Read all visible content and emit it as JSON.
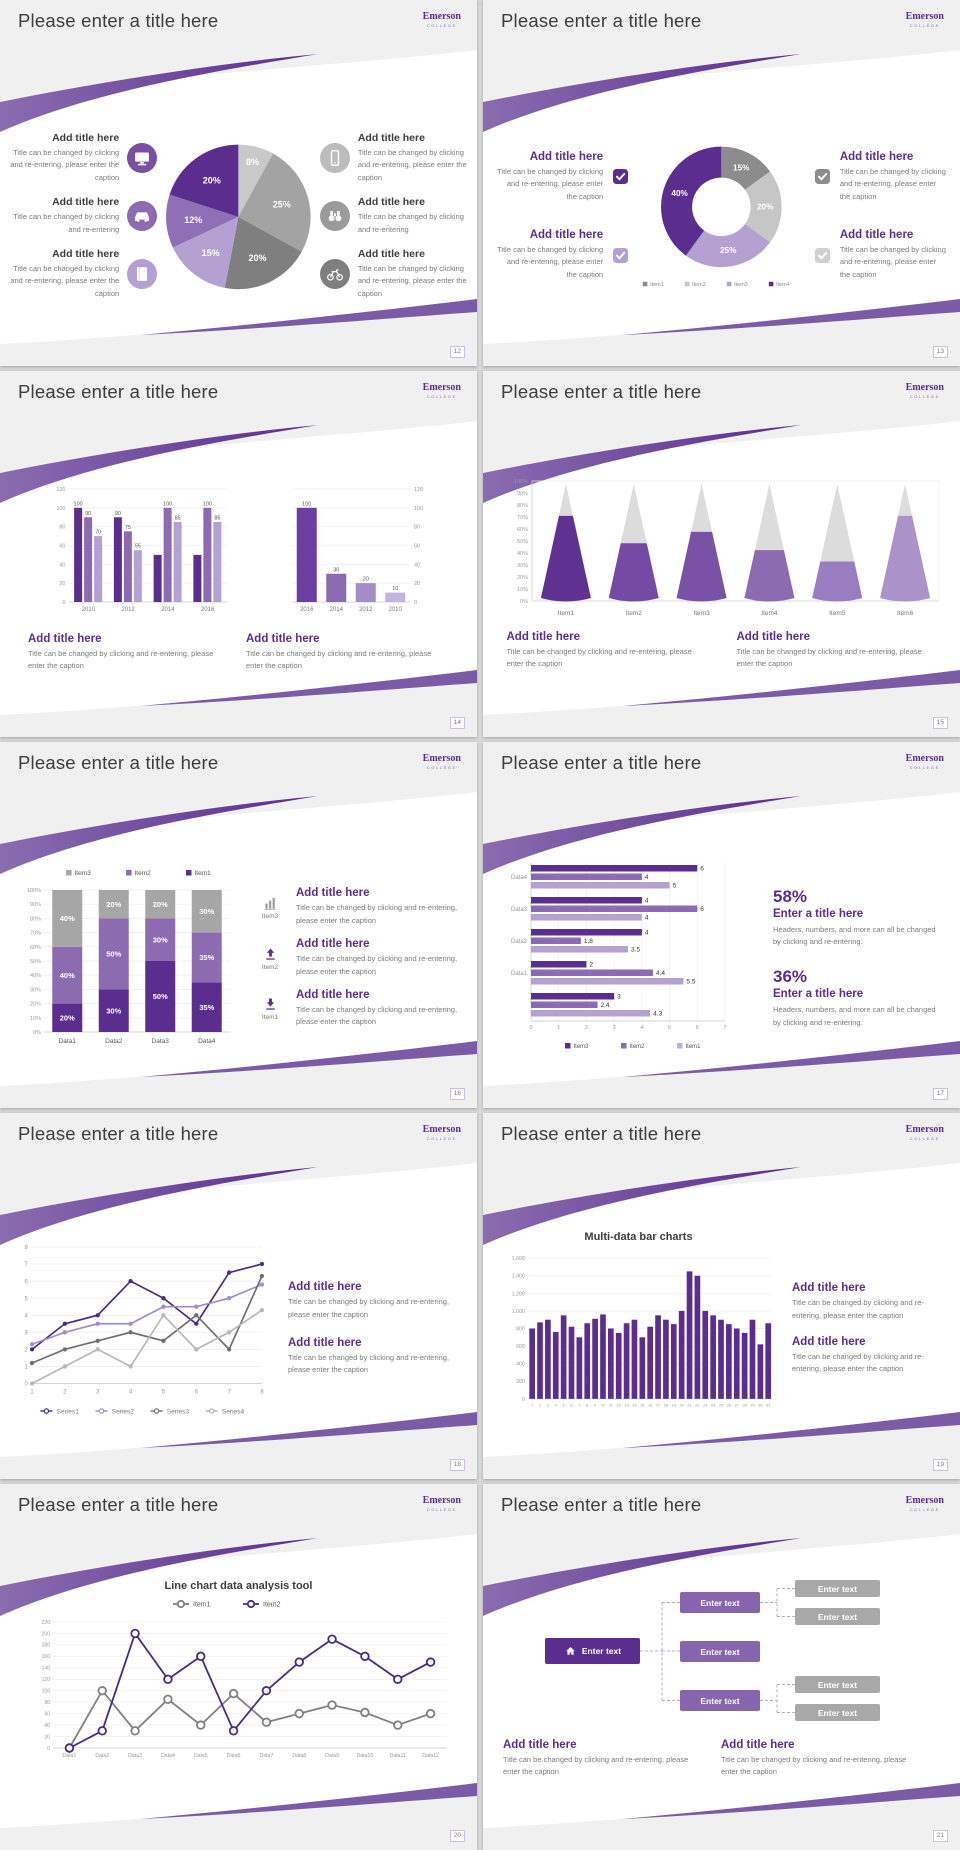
{
  "logo": {
    "name": "Emerson",
    "sub": "COLLEGE"
  },
  "slides": [
    {
      "title": "Please enter a title here",
      "page": "12",
      "blocks_left": [
        {
          "icon": "monitor",
          "icon_bg": "#7a4ea3",
          "title": "Add title here",
          "caption": "Title can be changed by clicking and re-entering, please enter the caption"
        },
        {
          "icon": "car",
          "icon_bg": "#8c6bb1",
          "title": "Add title here",
          "caption": "Title can be changed by clicking and re-entering"
        },
        {
          "icon": "book",
          "icon_bg": "#b4a1d2",
          "title": "Add title here",
          "caption": "Title can be changed by clicking and re-entering, please enter the caption"
        }
      ],
      "blocks_right": [
        {
          "icon": "smartphone",
          "icon_bg": "#bcbcbc",
          "title": "Add title here",
          "caption": "Title can be changed by clicking and re-entering, please enter the caption"
        },
        {
          "icon": "binoculars",
          "icon_bg": "#9b9b9b",
          "title": "Add title here",
          "caption": "Title can be changed by clicking and re-entering"
        },
        {
          "icon": "bicycle",
          "icon_bg": "#7f7f7f",
          "title": "Add title here",
          "caption": "Title can be changed by clicking and re-entering, please enter the caption"
        }
      ],
      "chart_data": {
        "type": "pie",
        "values": [
          8,
          25,
          20,
          15,
          12,
          20
        ],
        "labels": [
          "8%",
          "25%",
          "20%",
          "15%",
          "12%",
          "20%"
        ],
        "colors": [
          "#c9c9c9",
          "#a3a3a3",
          "#7f7f7f",
          "#b4a1d2",
          "#8f6fb5",
          "#5b2d8e"
        ]
      }
    },
    {
      "title": "Please enter a title here",
      "page": "13",
      "blocks_left": [
        {
          "icon_color": "#5b2d8e",
          "title": "Add title here",
          "caption": "Title can be changed by clicking and re-entering, please enter the caption"
        },
        {
          "icon_color": "#b4a1d2",
          "title": "Add title here",
          "caption": "Title can be changed by clicking and re-entering, please enter the caption"
        }
      ],
      "blocks_right": [
        {
          "icon_color": "#8c8c8c",
          "title": "Add title here",
          "caption": "Title can be changed by clicking and re-entering, please enter the caption"
        },
        {
          "icon_color": "#d0d0d0",
          "title": "Add title here",
          "caption": "Title can be changed by clicking and re-entering, please enter the caption"
        }
      ],
      "chart_data": {
        "type": "donut",
        "values": [
          15,
          20,
          25,
          40
        ],
        "labels": [
          "15%",
          "20%",
          "25%",
          "40%"
        ],
        "colors": [
          "#8c8c8c",
          "#c6c6c6",
          "#b4a1d2",
          "#5b2d8e"
        ],
        "legend": [
          {
            "label": "Item1",
            "color": "#8c8c8c"
          },
          {
            "label": "Item2",
            "color": "#c6c6c6"
          },
          {
            "label": "Item3",
            "color": "#b4a1d2"
          },
          {
            "label": "Item4",
            "color": "#5b2d8e"
          }
        ]
      }
    },
    {
      "title": "Please enter a title here",
      "page": "14",
      "captions": [
        {
          "title": "Add title here",
          "caption": "Title can be changed by clicking and re-entering, please enter the caption"
        },
        {
          "title": "Add title here",
          "caption": "Title can be changed by clicking and re-entering, please enter the caption"
        }
      ],
      "chart_data": [
        {
          "type": "grouped-bar",
          "categories": [
            "2010",
            "2012",
            "2014",
            "2016"
          ],
          "y_ticks": [
            0,
            20,
            40,
            60,
            80,
            100,
            120
          ],
          "y_max": 120,
          "colors": [
            "#5b2d8e",
            "#8c6bb1",
            "#b4a1d2"
          ],
          "groups": [
            [
              100,
              90,
              70
            ],
            [
              90,
              75,
              55
            ],
            [
              50,
              100,
              85
            ],
            [
              50,
              100,
              85
            ]
          ],
          "bar_labels": [
            [
              "100",
              "90",
              "70"
            ],
            [
              "90",
              "75",
              "55"
            ],
            [
              "",
              "100",
              "85"
            ],
            [
              "",
              "100",
              "85"
            ]
          ]
        },
        {
          "type": "bar",
          "categories": [
            "2016",
            "2014",
            "2012",
            "2010"
          ],
          "values": [
            100,
            30,
            20,
            10
          ],
          "bar_labels": [
            "100",
            "30",
            "20",
            "10"
          ],
          "colors": [
            "#6b3fa0",
            "#8c6bb1",
            "#a48cc6",
            "#c3b3dd"
          ],
          "y_ticks": [
            0,
            20,
            40,
            60,
            80,
            100,
            120
          ],
          "y_max": 120
        }
      ]
    },
    {
      "title": "Please enter a title here",
      "page": "15",
      "captions": [
        {
          "title": "Add title here",
          "caption": "Title can be changed by clicking and re-entering, please enter the caption"
        },
        {
          "title": "Add title here",
          "caption": "Title can be changed by clicking and re-entering, please enter the caption"
        }
      ],
      "chart_data": {
        "type": "cone",
        "categories": [
          "Item1",
          "Item2",
          "Item3",
          "Item4",
          "Item5",
          "Item6"
        ],
        "values_pct": [
          72,
          48,
          58,
          42,
          32,
          72
        ],
        "colors": [
          "#5f3191",
          "#744aa5",
          "#7a52a5",
          "#8c6bb1",
          "#9a7cc0",
          "#ab93c9"
        ],
        "cone_bg": "#dcdcdc",
        "y_ticks": [
          "0%",
          "10%",
          "20%",
          "30%",
          "40%",
          "50%",
          "60%",
          "70%",
          "80%",
          "90%",
          "100%"
        ]
      }
    },
    {
      "title": "Please enter a title here",
      "page": "16",
      "blocks": [
        {
          "icon": "bar-chart",
          "icon_label": "Item3",
          "title": "Add title here",
          "caption": "Title can be changed by clicking and re-entering, please enter the caption"
        },
        {
          "icon": "arrow-up",
          "icon_label": "Item2",
          "title": "Add title here",
          "caption": "Title can be changed by clicking and re-entering, please enter the caption"
        },
        {
          "icon": "arrow-down",
          "icon_label": "Item1",
          "title": "Add title here",
          "caption": "Title can be changed by clicking and re-entering, please enter the caption"
        }
      ],
      "chart_data": {
        "type": "stacked-bar",
        "categories": [
          "Data1",
          "Data2",
          "Data3",
          "Data4"
        ],
        "series": [
          {
            "name": "Item1",
            "color": "#5b2d8e",
            "values": [
              20,
              30,
              50,
              35
            ]
          },
          {
            "name": "Item2",
            "color": "#8c6bb1",
            "values": [
              40,
              50,
              30,
              35
            ]
          },
          {
            "name": "Item3",
            "color": "#a6a6a6",
            "values": [
              40,
              20,
              20,
              30
            ]
          }
        ],
        "legend_order": [
          "Item3",
          "Item2",
          "Item1"
        ],
        "y_ticks": [
          "0%",
          "10%",
          "20%",
          "30%",
          "40%",
          "50%",
          "60%",
          "70%",
          "80%",
          "90%",
          "100%"
        ]
      }
    },
    {
      "title": "Please enter a title here",
      "page": "17",
      "stats": [
        {
          "value": "58%",
          "title": "Enter a title here",
          "caption": "Headers, numbers, and more can all be changed by clicking and re-entering."
        },
        {
          "value": "36%",
          "title": "Enter a title here",
          "caption": "Headers, numbers, and more can all be changed by clicking and re-entering."
        }
      ],
      "chart_data": {
        "type": "hbar",
        "x_ticks": [
          0,
          1,
          2,
          3,
          4,
          5,
          6,
          7
        ],
        "x_max": 7,
        "colors": [
          "#5b2d8e",
          "#8c6bb1",
          "#b4a1d2"
        ],
        "groups": [
          {
            "label": "Data4",
            "values": [
              6,
              4,
              5
            ]
          },
          {
            "label": "Data3",
            "values": [
              4,
              6,
              4
            ]
          },
          {
            "label": "Data2",
            "values": [
              4,
              1.8,
              3.5
            ]
          },
          {
            "label": "Data1",
            "values": [
              2,
              4.4,
              5.5
            ]
          },
          {
            "label": "",
            "values": [
              3,
              2.4,
              4.3
            ]
          }
        ],
        "legend": [
          {
            "label": "Item3",
            "color": "#5b2d8e"
          },
          {
            "label": "Item2",
            "color": "#8c6bb1"
          },
          {
            "label": "Item1",
            "color": "#bdb0d0"
          }
        ]
      }
    },
    {
      "title": "Please enter a title here",
      "page": "18",
      "captions": [
        {
          "title": "Add title here",
          "caption": "Title can be changed by clicking and re-entering, please enter the caption"
        },
        {
          "title": "Add title here",
          "caption": "Title can be changed by clicking and re-entering, please enter the caption"
        }
      ],
      "chart_data": {
        "type": "line",
        "x_labels": [
          "1",
          "2",
          "3",
          "4",
          "5",
          "6",
          "7",
          "8"
        ],
        "y_ticks": [
          0,
          1,
          2,
          3,
          4,
          5,
          6,
          7,
          8
        ],
        "y_max": 8,
        "series": [
          {
            "name": "Series1",
            "color": "#4b2a82",
            "values": [
              2,
              3.5,
              4,
              6,
              5,
              3.5,
              6.5,
              7
            ]
          },
          {
            "name": "Series2",
            "color": "#a08cc8",
            "values": [
              2.3,
              3,
              3.5,
              3.5,
              4.5,
              4.5,
              5,
              5.8
            ]
          },
          {
            "name": "Series3",
            "color": "#6e6e6e",
            "values": [
              1.2,
              2,
              2.5,
              3,
              2.5,
              4,
              2,
              6.3
            ]
          },
          {
            "name": "Series4",
            "color": "#b8b8b8",
            "values": [
              0,
              1,
              2,
              1,
              4,
              2,
              3,
              4.3
            ]
          }
        ]
      }
    },
    {
      "title": "Please enter a title here",
      "page": "19",
      "captions": [
        {
          "title": "Add title here",
          "caption": "Title can be changed by clicking and re-entering, please enter the caption"
        },
        {
          "title": "Add title here",
          "caption": "Title can be changed by clicking and re-entering, please enter the caption"
        }
      ],
      "chart_data": {
        "type": "multi-bar",
        "title": "Multi-data bar charts",
        "color": "#5b2d8e",
        "x_labels": [
          "1",
          "2",
          "3",
          "4",
          "5",
          "6",
          "7",
          "8",
          "9",
          "10",
          "11",
          "12",
          "13",
          "14",
          "15",
          "16",
          "17",
          "18",
          "19",
          "20",
          "21",
          "22",
          "23",
          "24",
          "25",
          "26",
          "27",
          "28",
          "29",
          "30",
          "31"
        ],
        "y_ticks": [
          "0",
          "200",
          "400",
          "600",
          "800",
          "1,000",
          "1,200",
          "1,400",
          "1,600"
        ],
        "y_max": 1600,
        "values": [
          800,
          870,
          900,
          760,
          950,
          820,
          700,
          860,
          910,
          960,
          800,
          750,
          860,
          900,
          700,
          820,
          950,
          900,
          850,
          1000,
          1450,
          1400,
          1000,
          950,
          900,
          850,
          800,
          750,
          900,
          620,
          860
        ]
      }
    },
    {
      "title": "Please enter a title here",
      "page": "20",
      "chart_data": {
        "type": "line-markers",
        "title": "Line chart data analysis tool",
        "x_labels": [
          "Data1",
          "Data2",
          "Data3",
          "Data4",
          "Data5",
          "Data6",
          "Data7",
          "Data8",
          "Data9",
          "Data10",
          "Data11",
          "Data12"
        ],
        "y_ticks": [
          0,
          20,
          40,
          60,
          80,
          100,
          120,
          140,
          160,
          180,
          200,
          220
        ],
        "y_max": 220,
        "series": [
          {
            "name": "Item1",
            "color": "#808080",
            "values": [
              0,
              100,
              30,
              85,
              40,
              95,
              45,
              60,
              75,
              62,
              40,
              60
            ]
          },
          {
            "name": "Item2",
            "color": "#4b2a82",
            "values": [
              0,
              30,
              200,
              120,
              160,
              30,
              100,
              150,
              190,
              160,
              120,
              150
            ]
          }
        ]
      }
    },
    {
      "title": "Please enter a title here",
      "page": "21",
      "diagram": {
        "root": {
          "label": "Enter text",
          "icon": "home",
          "color": "#5b2d8e"
        },
        "mid": [
          "Enter text",
          "Enter text",
          "Enter text"
        ],
        "leaf": [
          "Enter text",
          "Enter text",
          "Enter text",
          "Enter text"
        ],
        "mid_color": "#8764ae",
        "leaf_color": "#a8a8a8"
      },
      "captions": [
        {
          "title": "Add title here",
          "caption": "Title can be changed by clicking and re-entering, please enter the caption"
        },
        {
          "title": "Add title here",
          "caption": "Title can be changed by clicking and re-entering, please enter the caption"
        }
      ]
    }
  ]
}
